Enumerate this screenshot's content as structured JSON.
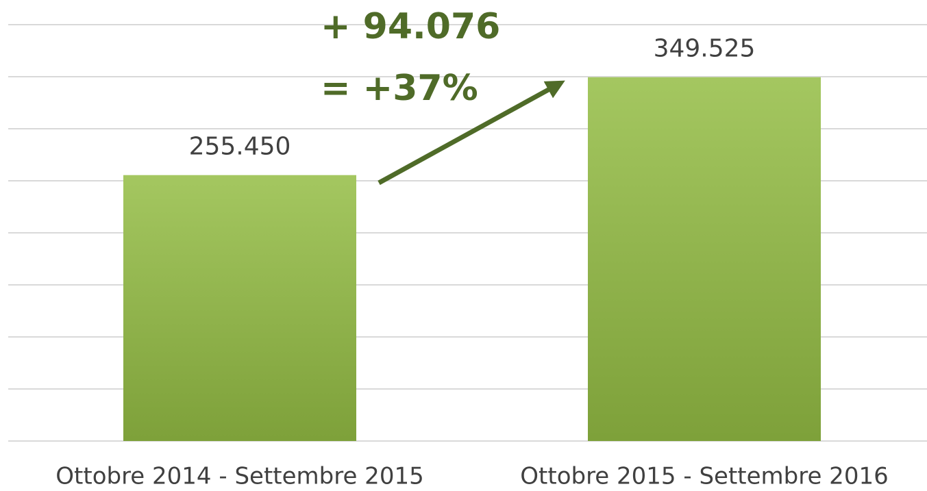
{
  "chart_data": {
    "type": "bar",
    "categories": [
      "Ottobre 2014 - Settembre 2015",
      "Ottobre 2015 - Settembre 2016"
    ],
    "values": [
      255450,
      349525
    ],
    "value_labels": [
      "255.450",
      "349.525"
    ],
    "color": "#94bd44",
    "ylim": [
      0,
      400000
    ],
    "yticks": [
      0,
      50000,
      100000,
      150000,
      200000,
      250000,
      300000,
      350000,
      400000
    ],
    "grid": true,
    "annotations": [
      "+ 94.076",
      "= +37%"
    ]
  }
}
